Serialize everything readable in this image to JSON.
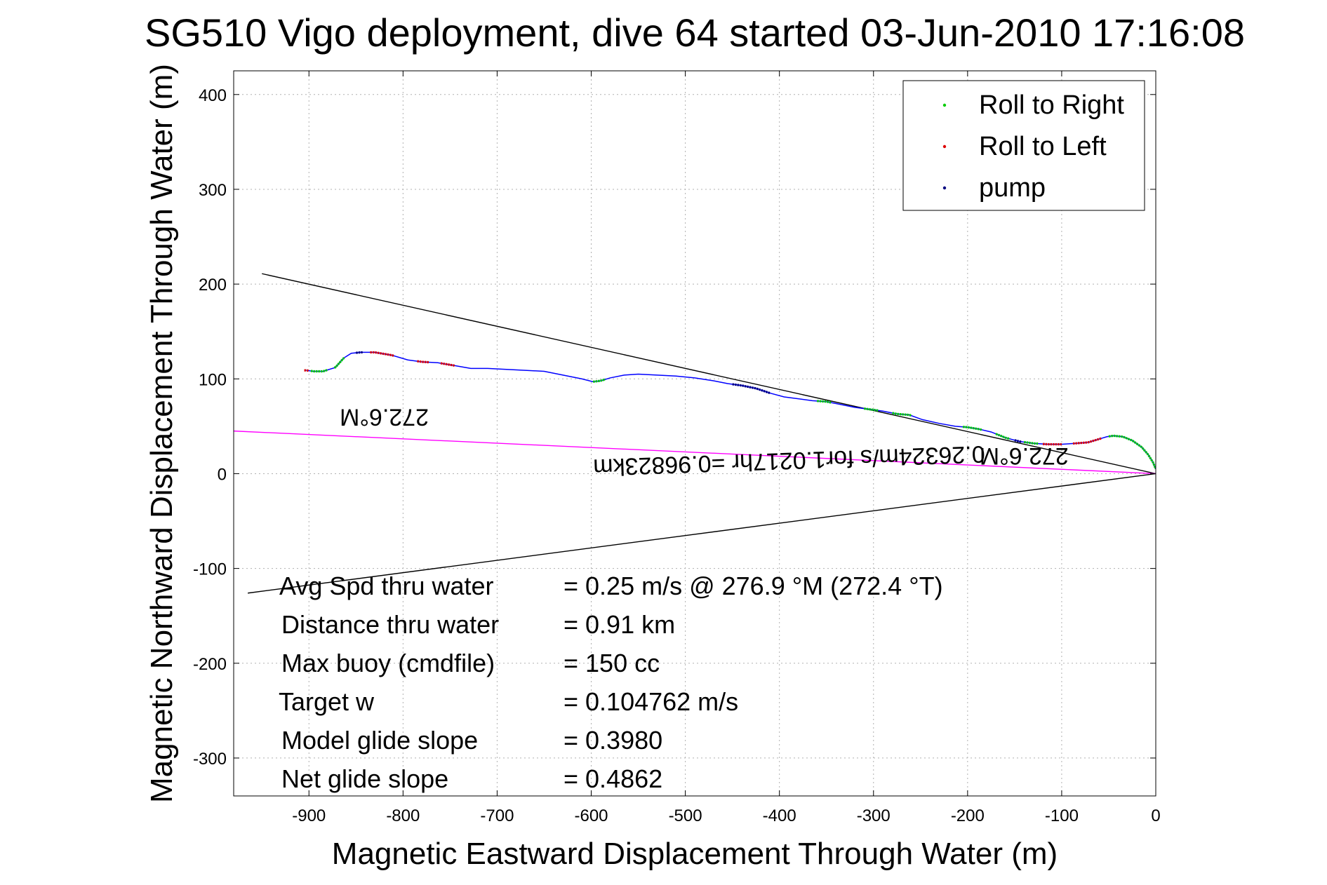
{
  "chart_data": {
    "type": "scatter",
    "title": "SG510 Vigo deployment, dive 64 started 03-Jun-2010 17:16:08",
    "xlabel": "Magnetic Eastward Displacement Through Water (m)",
    "ylabel": "Magnetic Northward Displacement Through Water (m)",
    "xlim": [
      -980,
      0
    ],
    "ylim": [
      -340,
      425
    ],
    "xticks": [
      -900,
      -800,
      -700,
      -600,
      -500,
      -400,
      -300,
      -200,
      -100,
      0
    ],
    "yticks": [
      -300,
      -200,
      -100,
      0,
      100,
      200,
      300,
      400
    ],
    "grid": true,
    "legend_position": "top-right",
    "colors": {
      "track": "#0000ff",
      "roll_right": "#00cc00",
      "roll_left": "#dd0000",
      "pump": "#000080",
      "course_line": "#ff00ff",
      "heading_lines": "#000000"
    },
    "legend": [
      {
        "label": "Roll to Right",
        "color": "#00cc00"
      },
      {
        "label": "Roll to Left",
        "color": "#dd0000"
      },
      {
        "label": "pump",
        "color": "#000080"
      }
    ],
    "track": [
      [
        -903,
        109
      ],
      [
        -895,
        108
      ],
      [
        -885,
        108
      ],
      [
        -872,
        112
      ],
      [
        -863,
        122
      ],
      [
        -855,
        127
      ],
      [
        -845,
        128
      ],
      [
        -830,
        128
      ],
      [
        -812,
        125
      ],
      [
        -795,
        120
      ],
      [
        -780,
        118
      ],
      [
        -763,
        117
      ],
      [
        -745,
        114
      ],
      [
        -728,
        111
      ],
      [
        -710,
        111
      ],
      [
        -690,
        110
      ],
      [
        -670,
        109
      ],
      [
        -650,
        108
      ],
      [
        -630,
        104
      ],
      [
        -610,
        100
      ],
      [
        -598,
        97
      ],
      [
        -590,
        98
      ],
      [
        -580,
        101
      ],
      [
        -565,
        104
      ],
      [
        -550,
        105
      ],
      [
        -530,
        104
      ],
      [
        -510,
        103
      ],
      [
        -490,
        101
      ],
      [
        -470,
        98
      ],
      [
        -455,
        95
      ],
      [
        -440,
        93
      ],
      [
        -425,
        90
      ],
      [
        -410,
        85
      ],
      [
        -395,
        81
      ],
      [
        -380,
        79
      ],
      [
        -365,
        77
      ],
      [
        -350,
        76
      ],
      [
        -335,
        73
      ],
      [
        -320,
        70
      ],
      [
        -305,
        68
      ],
      [
        -290,
        66
      ],
      [
        -275,
        63
      ],
      [
        -262,
        62
      ],
      [
        -248,
        57
      ],
      [
        -230,
        53
      ],
      [
        -213,
        50
      ],
      [
        -200,
        49
      ],
      [
        -188,
        47
      ],
      [
        -175,
        44
      ],
      [
        -160,
        38
      ],
      [
        -145,
        34
      ],
      [
        -130,
        32
      ],
      [
        -115,
        31
      ],
      [
        -100,
        31
      ],
      [
        -85,
        32
      ],
      [
        -72,
        33
      ],
      [
        -62,
        36
      ],
      [
        -52,
        39
      ],
      [
        -45,
        40
      ],
      [
        -35,
        39
      ],
      [
        -25,
        35
      ],
      [
        -15,
        28
      ],
      [
        -8,
        20
      ],
      [
        -3,
        12
      ],
      [
        0,
        5
      ]
    ],
    "roll_right_ranges": [
      [
        -898,
        -880
      ],
      [
        -873,
        -862
      ],
      [
        -598,
        -585
      ],
      [
        -360,
        -345
      ],
      [
        -310,
        -295
      ],
      [
        -280,
        -260
      ],
      [
        -205,
        -185
      ],
      [
        -170,
        -155
      ],
      [
        -140,
        -125
      ],
      [
        -50,
        0
      ]
    ],
    "roll_left_ranges": [
      [
        -905,
        -900
      ],
      [
        -835,
        -810
      ],
      [
        -785,
        -772
      ],
      [
        -760,
        -745
      ],
      [
        -120,
        -100
      ],
      [
        -88,
        -58
      ]
    ],
    "pump_ranges": [
      [
        -850,
        -843
      ],
      [
        -450,
        -410
      ],
      [
        -150,
        -143
      ]
    ],
    "lines": {
      "heading_upper": [
        [
          -950,
          211
        ],
        [
          0,
          0
        ]
      ],
      "heading_lower": [
        [
          -965,
          -126
        ],
        [
          0,
          0
        ]
      ],
      "course": [
        [
          -980,
          45
        ],
        [
          0,
          0
        ]
      ]
    },
    "annotations": [
      {
        "text": "272.6°M",
        "x": -820,
        "y": 68,
        "rotation": 180,
        "color": "#000000"
      },
      {
        "text": "0.26324m/s for1.0217hr =0.96823km",
        "x": -390,
        "y": 22,
        "rotation": 178,
        "color": "#000000"
      },
      {
        "text": "272.6°M",
        "x": -140,
        "y": 27,
        "rotation": 180,
        "color": "#000000"
      }
    ],
    "stats": [
      {
        "label": "Avg Spd thru water",
        "value": "=  0.25 m/s @ 276.9 °M (272.4 °T)"
      },
      {
        "label": "Distance thru water",
        "value": "=  0.91 km"
      },
      {
        "label": "Max buoy (cmdfile)",
        "value": "= 150 cc"
      },
      {
        "label": "Target w",
        "value": "= 0.104762 m/s"
      },
      {
        "label": "Model glide slope",
        "value": "= 0.3980"
      },
      {
        "label": "Net glide slope",
        "value": "= 0.4862"
      }
    ]
  }
}
